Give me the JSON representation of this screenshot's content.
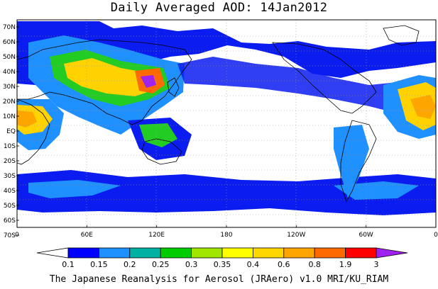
{
  "title": "Daily Averaged AOD: 14Jan2012",
  "footer": "The Japanese Reanalysis for Aerosol (JRAero) v1.0 MRI/KU_RIAM",
  "lat_labels": [
    "70N",
    "60N",
    "50N",
    "40N",
    "30N",
    "20N",
    "10N",
    "EQ",
    "10S",
    "20S",
    "30S",
    "40S",
    "50S",
    "60S",
    "70S"
  ],
  "lon_labels": [
    "0",
    "60E",
    "120E",
    "180",
    "120W",
    "60W",
    "0"
  ],
  "colorbar": {
    "levels": [
      "0.1",
      "0.15",
      "0.2",
      "0.25",
      "0.3",
      "0.35",
      "0.4",
      "0.6",
      "0.8",
      "1.9",
      "3"
    ],
    "colors": [
      "#ffffff",
      "#0000ff",
      "#1e90ff",
      "#00b0a0",
      "#00cc00",
      "#a0e600",
      "#ffff00",
      "#ffd700",
      "#ffa500",
      "#ff6a00",
      "#ff0000",
      "#a020f0"
    ]
  },
  "map_colors": {
    "low": "#0a1cf0",
    "light": "#1e90ff",
    "teal": "#00b0a0",
    "green": "#22cc22",
    "yellowgreen": "#b8e000",
    "yellow": "#ffff00",
    "gold": "#ffd200",
    "orange": "#ffa500",
    "darkorange": "#ff6a00",
    "red": "#ff0000",
    "purple": "#a020f0",
    "coast": "#000000",
    "grid": "#999999"
  }
}
